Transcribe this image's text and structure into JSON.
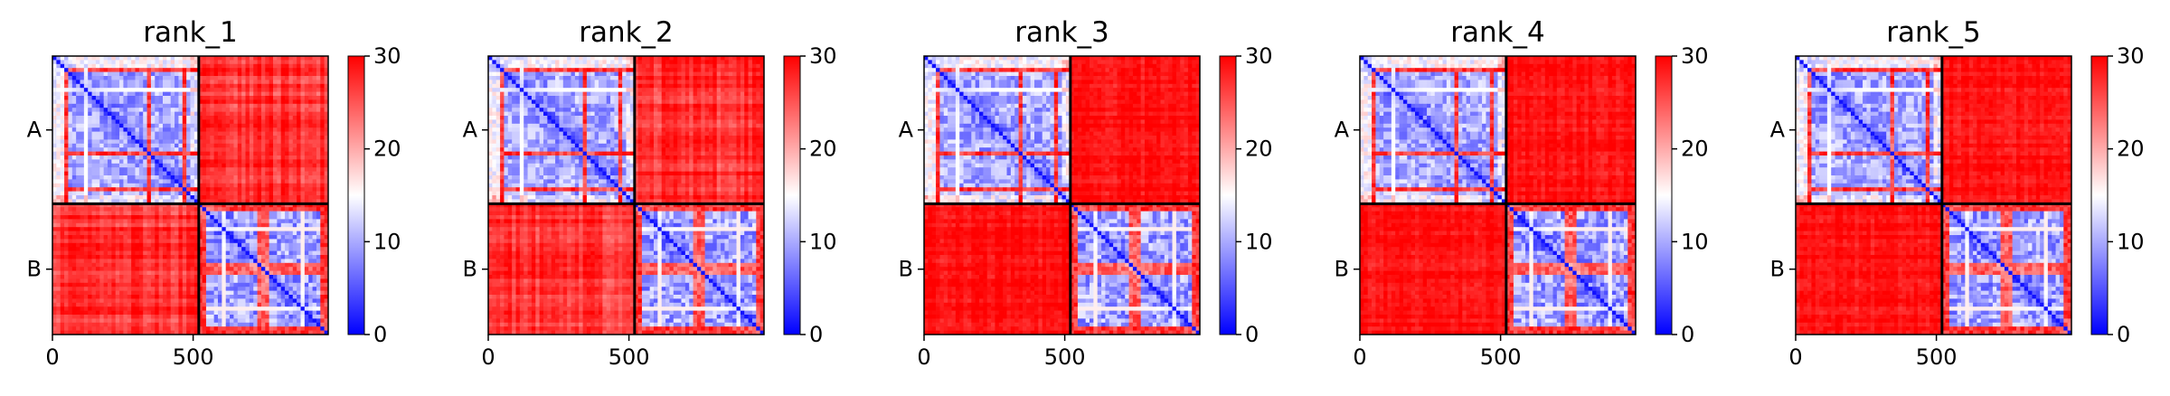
{
  "chart_data": {
    "type": "heatmap",
    "description_kind": "PAE matrices",
    "panels": [
      {
        "title": "rank_1",
        "variant": 0
      },
      {
        "title": "rank_2",
        "variant": 1
      },
      {
        "title": "rank_3",
        "variant": 2
      },
      {
        "title": "rank_4",
        "variant": 3
      },
      {
        "title": "rank_5",
        "variant": 4
      }
    ],
    "chains": [
      {
        "label": "A",
        "length": 520
      },
      {
        "label": "B",
        "length": 460
      }
    ],
    "total_length": 980,
    "xticks": [
      0,
      500
    ],
    "xtick_labels": [
      "0",
      "500"
    ],
    "colorbar": {
      "min": 0,
      "max": 30,
      "ticks": [
        0,
        10,
        20,
        30
      ],
      "tick_labels": [
        "0",
        "10",
        "20",
        "30"
      ],
      "colormap": "bwr",
      "colors": {
        "low": "#0000ff",
        "mid": "#ffffff",
        "high": "#ff0000"
      }
    },
    "intra_chain_level": "low",
    "inter_chain_level": "high"
  }
}
